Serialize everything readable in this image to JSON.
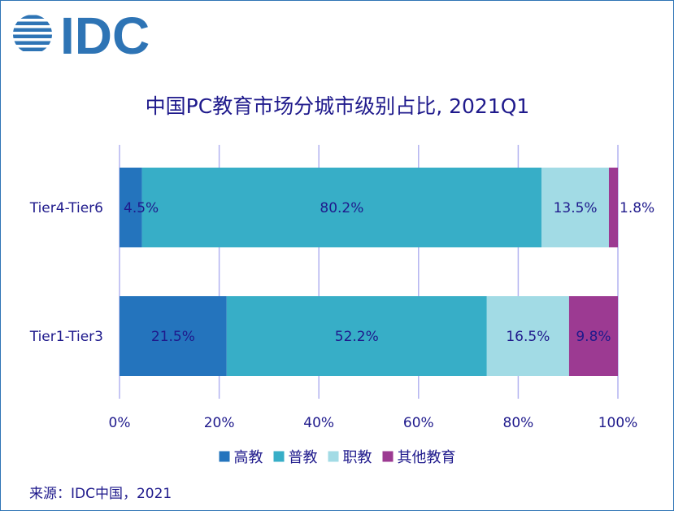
{
  "brand": {
    "logo_text": "IDC",
    "logo_color": "#2e74b5"
  },
  "chart_data": {
    "type": "bar",
    "orientation": "horizontal",
    "stacked": true,
    "title": "中国PC教育市场分城市级别占比, 2021Q1",
    "categories": [
      "Tier4-Tier6",
      "Tier1-Tier3"
    ],
    "series": [
      {
        "name": "高教",
        "color": "#2474bd",
        "values": [
          4.5,
          21.5
        ]
      },
      {
        "name": "普教",
        "color": "#37aec7",
        "values": [
          80.2,
          52.2
        ]
      },
      {
        "name": "职教",
        "color": "#a2dbe5",
        "values": [
          13.5,
          16.5
        ]
      },
      {
        "name": "其他教育",
        "color": "#9c3a92",
        "values": [
          1.8,
          9.8
        ]
      }
    ],
    "xlim": [
      0,
      100
    ],
    "x_ticks": [
      "0%",
      "20%",
      "40%",
      "60%",
      "80%",
      "100%"
    ],
    "grid": true,
    "legend_position": "bottom"
  },
  "source_note": "来源：IDC中国，2021"
}
